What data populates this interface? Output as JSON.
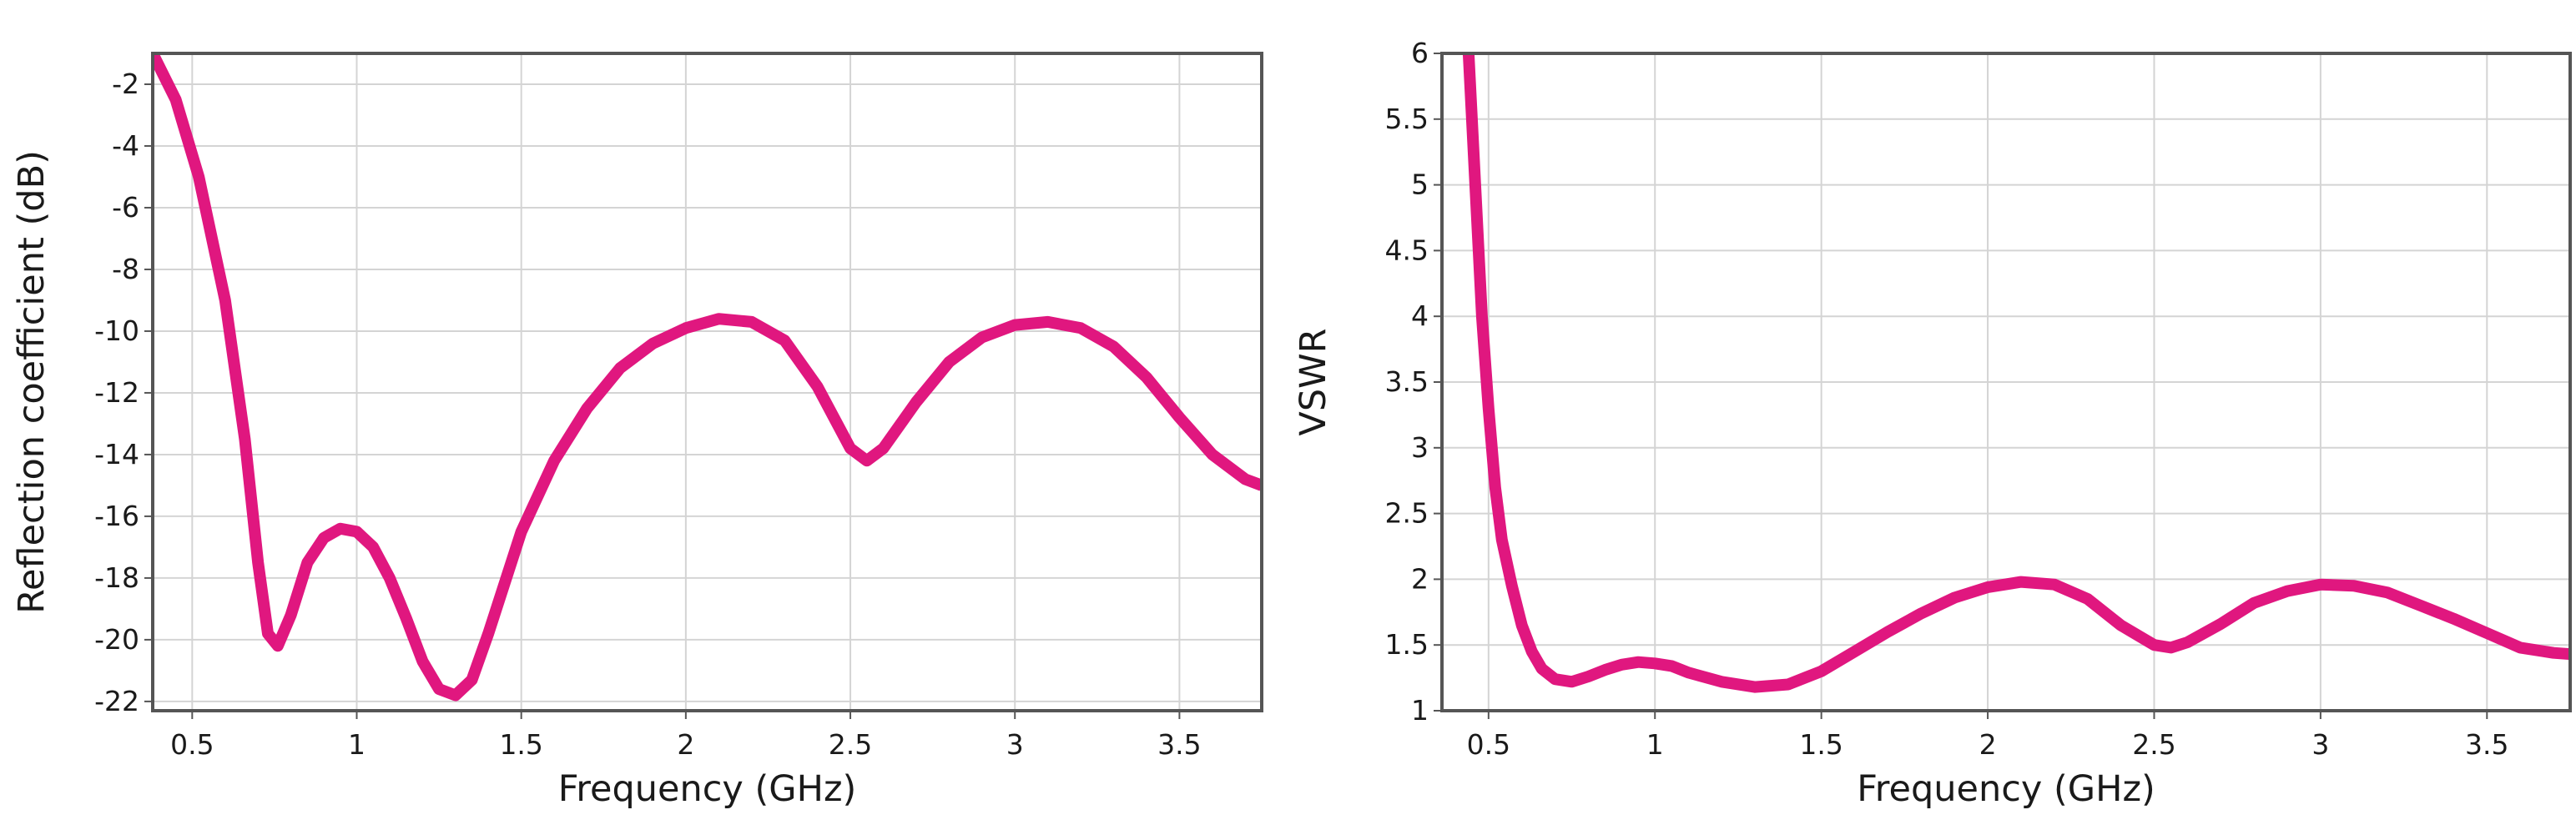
{
  "chart_data": [
    {
      "type": "line",
      "xlabel": "Frequency (GHz)",
      "ylabel": "Reflection coefficient (dB)",
      "xlim": [
        0.38,
        3.75
      ],
      "ylim": [
        -22.3,
        -1.0
      ],
      "xticks": [
        0.5,
        1,
        1.5,
        2,
        2.5,
        3,
        3.5
      ],
      "xtick_labels": [
        "0.5",
        "1",
        "1.5",
        "2",
        "2.5",
        "3",
        "3.5"
      ],
      "yticks": [
        -2,
        -4,
        -6,
        -8,
        -10,
        -12,
        -14,
        -16,
        -18,
        -20,
        -22
      ],
      "ytick_labels": [
        "-2",
        "-4",
        "-6",
        "-8",
        "-10",
        "-12",
        "-14",
        "-16",
        "-18",
        "-20",
        "-22"
      ],
      "grid": true,
      "line_color": "#e0177f",
      "series": [
        {
          "x": [
            0.38,
            0.45,
            0.52,
            0.6,
            0.66,
            0.7,
            0.73,
            0.76,
            0.8,
            0.85,
            0.9,
            0.95,
            1.0,
            1.05,
            1.1,
            1.15,
            1.2,
            1.25,
            1.3,
            1.35,
            1.4,
            1.5,
            1.6,
            1.7,
            1.8,
            1.9,
            2.0,
            2.1,
            2.2,
            2.3,
            2.4,
            2.5,
            2.55,
            2.6,
            2.7,
            2.8,
            2.9,
            3.0,
            3.1,
            3.2,
            3.3,
            3.4,
            3.5,
            3.6,
            3.7,
            3.75
          ],
          "y": [
            -1.0,
            -2.5,
            -5.0,
            -9.0,
            -13.5,
            -17.5,
            -19.8,
            -20.2,
            -19.2,
            -17.5,
            -16.7,
            -16.4,
            -16.5,
            -17.0,
            -18.0,
            -19.3,
            -20.7,
            -21.6,
            -21.8,
            -21.3,
            -19.8,
            -16.5,
            -14.2,
            -12.5,
            -11.2,
            -10.4,
            -9.9,
            -9.6,
            -9.7,
            -10.3,
            -11.8,
            -13.8,
            -14.2,
            -13.8,
            -12.3,
            -11.0,
            -10.2,
            -9.8,
            -9.7,
            -9.9,
            -10.5,
            -11.5,
            -12.8,
            -14.0,
            -14.8,
            -15.0
          ]
        }
      ]
    },
    {
      "type": "line",
      "xlabel": "Frequency (GHz)",
      "ylabel": "VSWR",
      "xlim": [
        0.36,
        3.75
      ],
      "ylim": [
        1,
        6
      ],
      "xticks": [
        0.5,
        1,
        1.5,
        2,
        2.5,
        3,
        3.5
      ],
      "xtick_labels": [
        "0.5",
        "1",
        "1.5",
        "2",
        "2.5",
        "3",
        "3.5"
      ],
      "yticks": [
        1,
        1.5,
        2,
        2.5,
        3,
        3.5,
        4,
        4.5,
        5,
        5.5,
        6
      ],
      "ytick_labels": [
        "1",
        "1.5",
        "2",
        "2.5",
        "3",
        "3.5",
        "4",
        "4.5",
        "5",
        "5.5",
        "6"
      ],
      "grid": true,
      "line_color": "#e0177f",
      "series": [
        {
          "x": [
            0.44,
            0.46,
            0.48,
            0.5,
            0.52,
            0.54,
            0.57,
            0.6,
            0.63,
            0.66,
            0.7,
            0.75,
            0.8,
            0.85,
            0.9,
            0.95,
            1.0,
            1.05,
            1.1,
            1.2,
            1.3,
            1.4,
            1.5,
            1.6,
            1.7,
            1.8,
            1.9,
            2.0,
            2.1,
            2.2,
            2.3,
            2.4,
            2.5,
            2.55,
            2.6,
            2.7,
            2.8,
            2.9,
            3.0,
            3.1,
            3.2,
            3.3,
            3.4,
            3.5,
            3.6,
            3.7,
            3.75
          ],
          "y": [
            6.0,
            5.0,
            4.0,
            3.3,
            2.7,
            2.3,
            1.95,
            1.65,
            1.45,
            1.32,
            1.24,
            1.22,
            1.26,
            1.31,
            1.35,
            1.37,
            1.36,
            1.34,
            1.29,
            1.22,
            1.18,
            1.2,
            1.3,
            1.45,
            1.6,
            1.74,
            1.86,
            1.94,
            1.98,
            1.96,
            1.85,
            1.65,
            1.5,
            1.48,
            1.52,
            1.66,
            1.82,
            1.91,
            1.96,
            1.95,
            1.9,
            1.8,
            1.7,
            1.59,
            1.48,
            1.44,
            1.43
          ]
        }
      ]
    }
  ]
}
